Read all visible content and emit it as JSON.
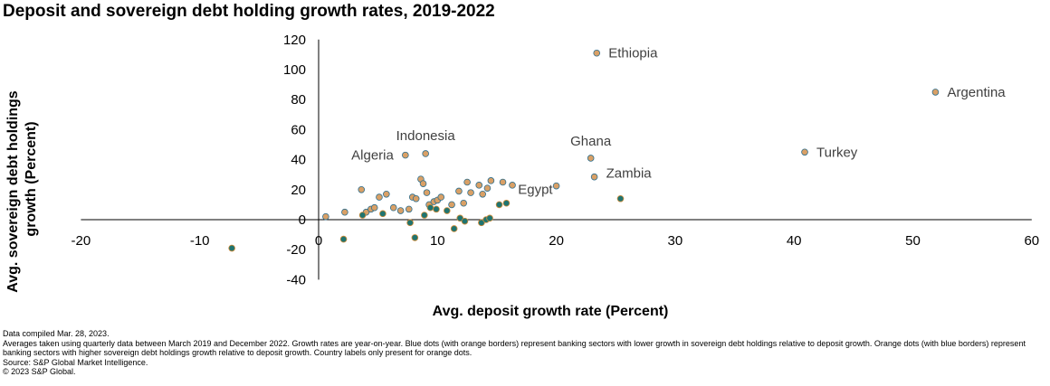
{
  "title": "Deposit and sovereign debt holding growth rates, 2019-2022",
  "colors": {
    "orange_fill": "#d9a066",
    "orange_border": "#2f6f8f",
    "blue_fill": "#1f7470",
    "blue_border": "#d08c3a",
    "axis": "#000000",
    "label": "#404040"
  },
  "chart_data": {
    "type": "scatter",
    "title": "Deposit and sovereign debt holding growth rates, 2019-2022",
    "xlabel": "Avg. deposit growth rate (Percent)",
    "ylabel": "Avg. sovereign debt holdings growth (Percent)",
    "ylabel_lines": [
      "Avg. sovereign debt holdings",
      "growth (Percent)"
    ],
    "xlim": [
      -20,
      60
    ],
    "ylim": [
      -40,
      120
    ],
    "xticks": [
      -20,
      -10,
      0,
      10,
      20,
      30,
      40,
      50,
      60
    ],
    "yticks": [
      -40,
      -20,
      0,
      20,
      40,
      60,
      80,
      100,
      120
    ],
    "grid": false,
    "series": [
      {
        "name": "Higher sovereign debt holdings growth relative to deposit growth (orange dots)",
        "color": "orange",
        "points": [
          {
            "x": 23.4,
            "y": 111,
            "label": "Ethiopia"
          },
          {
            "x": 51.9,
            "y": 85,
            "label": "Argentina"
          },
          {
            "x": 40.9,
            "y": 45,
            "label": "Turkey"
          },
          {
            "x": 22.9,
            "y": 41,
            "label": "Ghana"
          },
          {
            "x": 23.2,
            "y": 28.5,
            "label": "Zambia"
          },
          {
            "x": 20.0,
            "y": 22.5,
            "label": "Egypt"
          },
          {
            "x": 9.0,
            "y": 44,
            "label": "Indonesia"
          },
          {
            "x": 7.3,
            "y": 43,
            "label": "Algeria"
          },
          {
            "x": 0.6,
            "y": 2
          },
          {
            "x": 2.2,
            "y": 5
          },
          {
            "x": 3.6,
            "y": 20
          },
          {
            "x": 4.0,
            "y": 5
          },
          {
            "x": 4.4,
            "y": 7
          },
          {
            "x": 4.7,
            "y": 8
          },
          {
            "x": 5.1,
            "y": 15
          },
          {
            "x": 5.7,
            "y": 17
          },
          {
            "x": 6.3,
            "y": 8
          },
          {
            "x": 6.9,
            "y": 6
          },
          {
            "x": 7.6,
            "y": 7
          },
          {
            "x": 7.9,
            "y": 15
          },
          {
            "x": 8.2,
            "y": 14
          },
          {
            "x": 8.6,
            "y": 27
          },
          {
            "x": 8.8,
            "y": 24
          },
          {
            "x": 9.1,
            "y": 18
          },
          {
            "x": 9.3,
            "y": 10
          },
          {
            "x": 9.7,
            "y": 12
          },
          {
            "x": 10.0,
            "y": 13
          },
          {
            "x": 10.3,
            "y": 15
          },
          {
            "x": 11.2,
            "y": 10
          },
          {
            "x": 11.8,
            "y": 19
          },
          {
            "x": 12.2,
            "y": 11
          },
          {
            "x": 12.5,
            "y": 25
          },
          {
            "x": 12.8,
            "y": 18
          },
          {
            "x": 13.5,
            "y": 23
          },
          {
            "x": 13.8,
            "y": 17
          },
          {
            "x": 14.2,
            "y": 21
          },
          {
            "x": 14.5,
            "y": 26
          },
          {
            "x": 15.5,
            "y": 25
          },
          {
            "x": 16.3,
            "y": 23
          }
        ]
      },
      {
        "name": "Lower sovereign debt holdings growth relative to deposit growth (blue dots)",
        "color": "blue",
        "points": [
          {
            "x": -7.3,
            "y": -19
          },
          {
            "x": 2.1,
            "y": -13
          },
          {
            "x": 3.7,
            "y": 3
          },
          {
            "x": 5.4,
            "y": 4
          },
          {
            "x": 7.7,
            "y": -2
          },
          {
            "x": 8.1,
            "y": -12
          },
          {
            "x": 8.9,
            "y": 3
          },
          {
            "x": 9.4,
            "y": 8
          },
          {
            "x": 9.9,
            "y": 7
          },
          {
            "x": 10.8,
            "y": 6
          },
          {
            "x": 11.4,
            "y": -6
          },
          {
            "x": 11.9,
            "y": 1
          },
          {
            "x": 12.3,
            "y": -1
          },
          {
            "x": 13.7,
            "y": -2
          },
          {
            "x": 14.1,
            "y": 0
          },
          {
            "x": 14.4,
            "y": 1
          },
          {
            "x": 15.2,
            "y": 10
          },
          {
            "x": 15.8,
            "y": 11
          },
          {
            "x": 25.4,
            "y": 14
          }
        ]
      }
    ]
  },
  "footnotes": [
    "Data compiled Mar. 28, 2023.",
    "Averages taken using quarterly data between March 2019 and December 2022. Growth rates are year-on-year. Blue dots (with orange borders) represent banking sectors with lower growth in sovereign debt holdings relative to deposit growth. Orange dots (with blue borders) represent banking sectors with higher sovereign debt holdings growth relative to deposit growth. Country labels only present for orange dots.",
    "Source: S&P Global Market Intelligence.",
    "© 2023 S&P Global."
  ]
}
